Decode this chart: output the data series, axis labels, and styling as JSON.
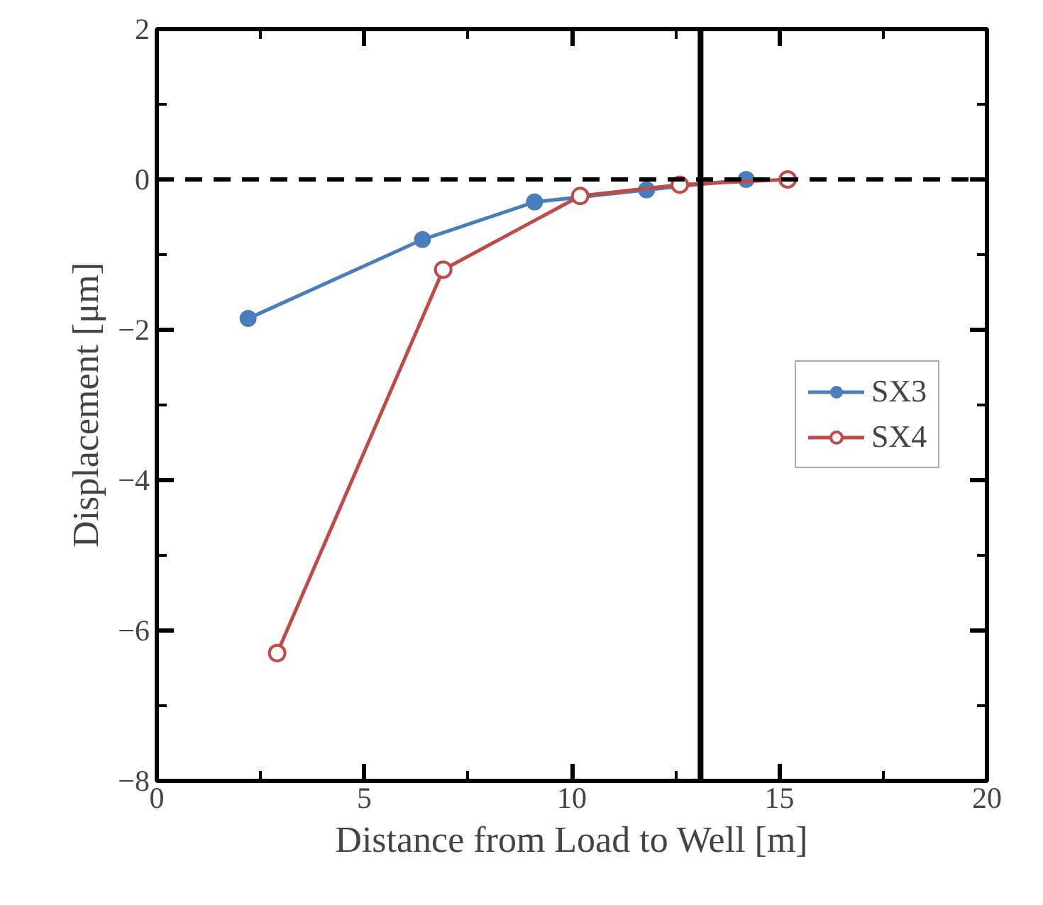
{
  "chart_data": {
    "type": "line",
    "xlabel": "Distance from Load to Well [m]",
    "ylabel": "Displacement [μm]",
    "xlim": [
      0,
      20
    ],
    "xticks": [
      0,
      5,
      10,
      15,
      20
    ],
    "ylim": [
      -8,
      2
    ],
    "yticks": [
      -8,
      -6,
      -4,
      -2,
      0,
      2
    ],
    "grid": false,
    "legend": "right",
    "series": [
      {
        "name": "SX3",
        "color": "#4a7ebb",
        "marker": "circle",
        "x": [
          2.2,
          6.4,
          9.1,
          11.8,
          14.2
        ],
        "values": [
          -1.85,
          -0.8,
          -0.3,
          -0.14,
          0
        ]
      },
      {
        "name": "SX4",
        "color": "#be4b48",
        "marker": "circle_open",
        "x": [
          2.9,
          6.9,
          10.2,
          12.6,
          15.2
        ],
        "values": [
          -6.3,
          -1.2,
          -0.22,
          -0.07,
          0
        ]
      }
    ],
    "ref_lines": [
      {
        "axis": "y",
        "value": 0,
        "label": null,
        "line_style": "dashed",
        "color": "#000000"
      },
      {
        "axis": "x",
        "value": 13.1,
        "label": null,
        "line_style": "solid",
        "color": "#000000"
      }
    ]
  }
}
